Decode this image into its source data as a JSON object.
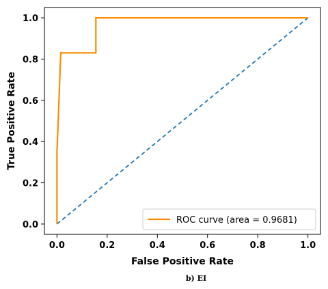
{
  "chart_data": {
    "type": "line",
    "xlabel": "False Positive Rate",
    "ylabel": "True Positive Rate",
    "xlim": [
      -0.05,
      1.05
    ],
    "ylim": [
      -0.05,
      1.05
    ],
    "xticks": [
      "0.0",
      "0.2",
      "0.4",
      "0.6",
      "0.8",
      "1.0"
    ],
    "yticks": [
      "0.0",
      "0.2",
      "0.4",
      "0.6",
      "0.8",
      "1.0"
    ],
    "grid": false,
    "legend_position": "lower right",
    "series": [
      {
        "name": "ROC curve (area = 0.9681)",
        "color": "#ff8c00",
        "style": "solid",
        "x": [
          0.0,
          0.0,
          0.0,
          0.005,
          0.015,
          0.155,
          0.155,
          1.0
        ],
        "y": [
          0.0,
          0.33,
          0.35,
          0.5,
          0.83,
          0.83,
          1.0,
          1.0
        ]
      },
      {
        "color": "#1f77b4",
        "style": "dashed",
        "x": [
          0.0,
          1.0
        ],
        "y": [
          0.0,
          1.0
        ]
      }
    ]
  },
  "legend": {
    "label": "ROC curve (area = 0.9681)"
  },
  "caption": "b) EI"
}
